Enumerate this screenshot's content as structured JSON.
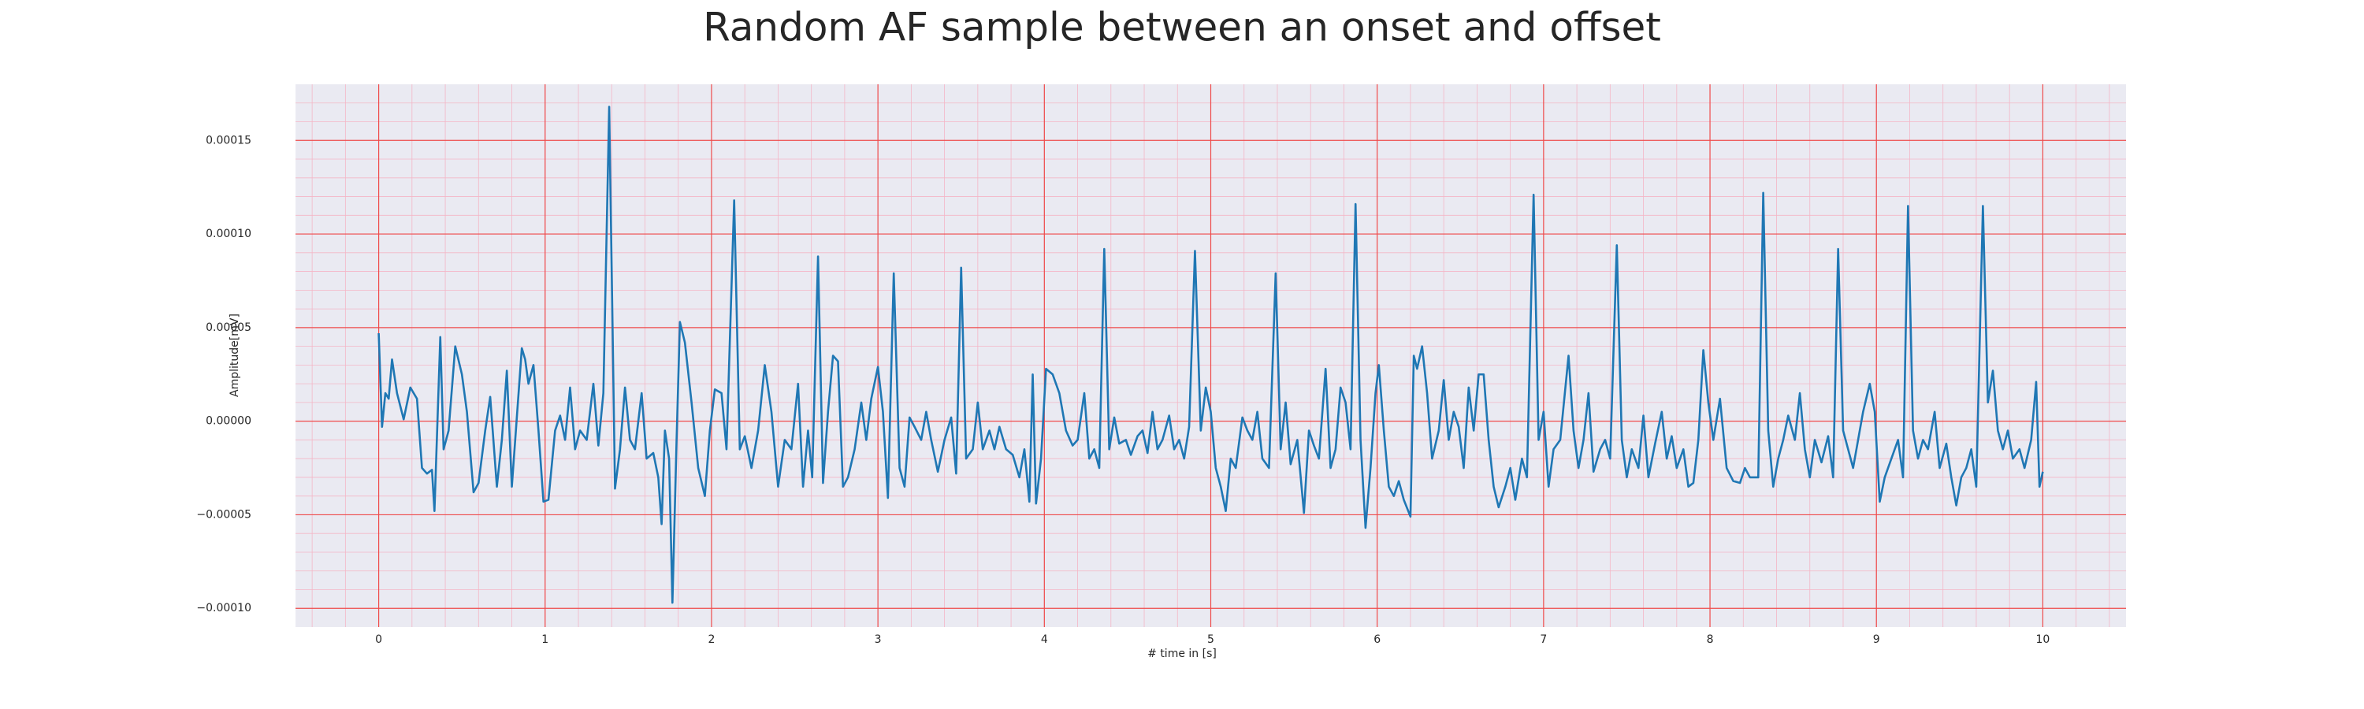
{
  "chart_data": {
    "type": "line",
    "title": "Random AF sample between an onset and offset",
    "xlabel": "# time in [s]",
    "ylabel": "Amplitude[mV]",
    "color": "#1f77b4",
    "xlim": [
      -0.5,
      10.5
    ],
    "ylim": [
      -0.00011,
      0.00018
    ],
    "xticks": [
      0,
      1,
      2,
      3,
      4,
      5,
      6,
      7,
      8,
      9,
      10
    ],
    "yticks": [
      {
        "value": -0.0001,
        "label": "−0.00010"
      },
      {
        "value": -5e-05,
        "label": "−0.00005"
      },
      {
        "value": 0,
        "label": "0.00000"
      },
      {
        "value": 5e-05,
        "label": "0.00005"
      },
      {
        "value": 0.0001,
        "label": "0.00010"
      },
      {
        "value": 0.00015,
        "label": "0.00015"
      }
    ],
    "grid": true,
    "minor_divisions": 5,
    "x": [
      0,
      0.02,
      0.04,
      0.06,
      0.08,
      0.11,
      0.15,
      0.19,
      0.23,
      0.26,
      0.29,
      0.32,
      0.335,
      0.37,
      0.39,
      0.42,
      0.46,
      0.5,
      0.53,
      0.57,
      0.6,
      0.64,
      0.67,
      0.71,
      0.74,
      0.77,
      0.8,
      0.83,
      0.86,
      0.88,
      0.9,
      0.93,
      0.96,
      0.99,
      1.02,
      1.06,
      1.09,
      1.12,
      1.15,
      1.18,
      1.21,
      1.25,
      1.29,
      1.32,
      1.35,
      1.385,
      1.42,
      1.45,
      1.48,
      1.51,
      1.54,
      1.58,
      1.61,
      1.65,
      1.68,
      1.7,
      1.72,
      1.745,
      1.765,
      1.79,
      1.81,
      1.84,
      1.88,
      1.92,
      1.96,
      1.99,
      2.02,
      2.06,
      2.09,
      2.136,
      2.17,
      2.2,
      2.24,
      2.28,
      2.32,
      2.36,
      2.4,
      2.44,
      2.48,
      2.52,
      2.55,
      2.58,
      2.605,
      2.64,
      2.67,
      2.7,
      2.73,
      2.76,
      2.79,
      2.82,
      2.86,
      2.9,
      2.93,
      2.96,
      3,
      3.03,
      3.06,
      3.095,
      3.13,
      3.16,
      3.19,
      3.22,
      3.26,
      3.29,
      3.32,
      3.36,
      3.4,
      3.44,
      3.47,
      3.5,
      3.53,
      3.57,
      3.6,
      3.63,
      3.67,
      3.7,
      3.73,
      3.77,
      3.81,
      3.85,
      3.88,
      3.91,
      3.93,
      3.95,
      3.98,
      4.01,
      4.05,
      4.09,
      4.13,
      4.17,
      4.2,
      4.24,
      4.27,
      4.3,
      4.33,
      4.36,
      4.39,
      4.42,
      4.45,
      4.49,
      4.52,
      4.56,
      4.59,
      4.62,
      4.65,
      4.68,
      4.71,
      4.75,
      4.78,
      4.81,
      4.84,
      4.87,
      4.905,
      4.94,
      4.97,
      5,
      5.03,
      5.06,
      5.09,
      5.12,
      5.15,
      5.19,
      5.22,
      5.25,
      5.28,
      5.31,
      5.35,
      5.39,
      5.42,
      5.45,
      5.48,
      5.52,
      5.56,
      5.59,
      5.62,
      5.65,
      5.69,
      5.72,
      5.75,
      5.78,
      5.81,
      5.84,
      5.87,
      5.9,
      5.93,
      5.96,
      5.99,
      6.01,
      6.04,
      6.07,
      6.1,
      6.13,
      6.16,
      6.2,
      6.22,
      6.24,
      6.27,
      6.3,
      6.33,
      6.37,
      6.4,
      6.43,
      6.46,
      6.49,
      6.52,
      6.55,
      6.58,
      6.61,
      6.64,
      6.67,
      6.7,
      6.73,
      6.77,
      6.8,
      6.83,
      6.87,
      6.9,
      6.94,
      6.97,
      7,
      7.03,
      7.06,
      7.1,
      7.15,
      7.18,
      7.21,
      7.24,
      7.27,
      7.3,
      7.34,
      7.37,
      7.4,
      7.44,
      7.47,
      7.5,
      7.53,
      7.57,
      7.6,
      7.63,
      7.67,
      7.71,
      7.74,
      7.77,
      7.8,
      7.84,
      7.87,
      7.9,
      7.93,
      7.96,
      7.99,
      8.02,
      8.06,
      8.1,
      8.14,
      8.18,
      8.21,
      8.24,
      8.29,
      8.32,
      8.35,
      8.38,
      8.41,
      8.44,
      8.47,
      8.51,
      8.54,
      8.57,
      8.6,
      8.63,
      8.67,
      8.71,
      8.74,
      8.77,
      8.8,
      8.83,
      8.86,
      8.89,
      8.92,
      8.96,
      8.99,
      9.02,
      9.05,
      9.09,
      9.13,
      9.16,
      9.19,
      9.22,
      9.25,
      9.28,
      9.31,
      9.35,
      9.38,
      9.42,
      9.45,
      9.48,
      9.51,
      9.54,
      9.57,
      9.6,
      9.64,
      9.67,
      9.7,
      9.73,
      9.76,
      9.79,
      9.82,
      9.86,
      9.89,
      9.93,
      9.96,
      9.98,
      10
    ],
    "values": [
      4.7e-05,
      -3e-06,
      1.5e-05,
      1.2e-05,
      3.3e-05,
      1.5e-05,
      1e-06,
      1.8e-05,
      1.2e-05,
      -2.5e-05,
      -2.8e-05,
      -2.6e-05,
      -4.8e-05,
      4.5e-05,
      -1.5e-05,
      -5e-06,
      4e-05,
      2.5e-05,
      5e-06,
      -3.8e-05,
      -3.3e-05,
      -5e-06,
      1.3e-05,
      -3.5e-05,
      -1e-05,
      2.7e-05,
      -3.5e-05,
      2e-06,
      3.9e-05,
      3.3e-05,
      2e-05,
      3e-05,
      -5e-06,
      -4.3e-05,
      -4.2e-05,
      -5e-06,
      3e-06,
      -1e-05,
      1.8e-05,
      -1.5e-05,
      -5e-06,
      -1e-05,
      2e-05,
      -1.3e-05,
      1.5e-05,
      0.000168,
      -3.6e-05,
      -1.5e-05,
      1.8e-05,
      -1e-05,
      -1.5e-05,
      1.5e-05,
      -2e-05,
      -1.7e-05,
      -3e-05,
      -5.5e-05,
      -5e-06,
      -2e-05,
      -9.7e-05,
      -1e-05,
      5.3e-05,
      4.2e-05,
      1e-05,
      -2.5e-05,
      -4e-05,
      -5e-06,
      1.7e-05,
      1.5e-05,
      -1.5e-05,
      0.000118,
      -1.5e-05,
      -8e-06,
      -2.5e-05,
      -5e-06,
      3e-05,
      5e-06,
      -3.5e-05,
      -1e-05,
      -1.5e-05,
      2e-05,
      -3.5e-05,
      -5e-06,
      -3e-05,
      8.8e-05,
      -3.3e-05,
      5e-06,
      3.5e-05,
      3.2e-05,
      -3.5e-05,
      -3e-05,
      -1.5e-05,
      1e-05,
      -1e-05,
      1.2e-05,
      2.9e-05,
      5e-06,
      -4.1e-05,
      7.9e-05,
      -2.5e-05,
      -3.5e-05,
      2e-06,
      -3e-06,
      -1e-05,
      5e-06,
      -1e-05,
      -2.7e-05,
      -1e-05,
      2e-06,
      -2.8e-05,
      8.2e-05,
      -2e-05,
      -1.5e-05,
      1e-05,
      -1.5e-05,
      -5e-06,
      -1.5e-05,
      -3e-06,
      -1.5e-05,
      -1.8e-05,
      -3e-05,
      -1.5e-05,
      -4.3e-05,
      2.5e-05,
      -4.4e-05,
      -2e-05,
      2.8e-05,
      2.5e-05,
      1.5e-05,
      -5e-06,
      -1.3e-05,
      -1e-05,
      1.5e-05,
      -2e-05,
      -1.5e-05,
      -2.5e-05,
      9.2e-05,
      -1.5e-05,
      2e-06,
      -1.2e-05,
      -1e-05,
      -1.8e-05,
      -8e-06,
      -5e-06,
      -1.7e-05,
      5e-06,
      -1.5e-05,
      -1e-05,
      3e-06,
      -1.5e-05,
      -1e-05,
      -2e-05,
      -3e-06,
      9.1e-05,
      -5e-06,
      1.8e-05,
      5e-06,
      -2.5e-05,
      -3.5e-05,
      -4.8e-05,
      -2e-05,
      -2.5e-05,
      2e-06,
      -5e-06,
      -1e-05,
      5e-06,
      -2e-05,
      -2.5e-05,
      7.9e-05,
      -1.5e-05,
      1e-05,
      -2.3e-05,
      -1e-05,
      -4.9e-05,
      -5e-06,
      -1.3e-05,
      -2e-05,
      2.8e-05,
      -2.5e-05,
      -1.5e-05,
      1.8e-05,
      1e-05,
      -1.5e-05,
      0.000116,
      -1e-05,
      -5.7e-05,
      -2.5e-05,
      1.5e-05,
      3e-05,
      -5e-06,
      -3.5e-05,
      -4e-05,
      -3.2e-05,
      -4.2e-05,
      -5.1e-05,
      3.5e-05,
      2.8e-05,
      4e-05,
      1.5e-05,
      -2e-05,
      -5e-06,
      2.2e-05,
      -1e-05,
      5e-06,
      -3e-06,
      -2.5e-05,
      1.8e-05,
      -5e-06,
      2.5e-05,
      2.5e-05,
      -1e-05,
      -3.5e-05,
      -4.6e-05,
      -3.5e-05,
      -2.5e-05,
      -4.2e-05,
      -2e-05,
      -3e-05,
      0.000121,
      -1e-05,
      5e-06,
      -3.5e-05,
      -1.5e-05,
      -1e-05,
      3.5e-05,
      -5e-06,
      -2.5e-05,
      -1e-05,
      1.5e-05,
      -2.7e-05,
      -1.5e-05,
      -1e-05,
      -2e-05,
      9.4e-05,
      -1e-05,
      -3e-05,
      -1.5e-05,
      -2.5e-05,
      3e-06,
      -3e-05,
      -1.2e-05,
      5e-06,
      -2e-05,
      -8e-06,
      -2.5e-05,
      -1.5e-05,
      -3.5e-05,
      -3.3e-05,
      -1e-05,
      3.8e-05,
      1e-05,
      -1e-05,
      1.2e-05,
      -2.5e-05,
      -3.2e-05,
      -3.3e-05,
      -2.5e-05,
      -3e-05,
      -3e-05,
      0.000122,
      -5e-06,
      -3.5e-05,
      -2e-05,
      -1e-05,
      3e-06,
      -1e-05,
      1.5e-05,
      -1.5e-05,
      -3e-05,
      -1e-05,
      -2.2e-05,
      -8e-06,
      -3e-05,
      9.2e-05,
      -5e-06,
      -1.5e-05,
      -2.5e-05,
      -1e-05,
      5e-06,
      2e-05,
      5e-06,
      -4.3e-05,
      -3e-05,
      -2e-05,
      -1e-05,
      -3e-05,
      0.000115,
      -5e-06,
      -2e-05,
      -1e-05,
      -1.5e-05,
      5e-06,
      -2.5e-05,
      -1.2e-05,
      -3e-05,
      -4.5e-05,
      -3e-05,
      -2.5e-05,
      -1.5e-05,
      -3.5e-05,
      0.000115,
      1e-05,
      2.7e-05,
      -5e-06,
      -1.5e-05,
      -5e-06,
      -2e-05,
      -1.5e-05,
      -2.5e-05,
      -1e-05,
      2.1e-05,
      -3.5e-05,
      -2.7e-05
    ]
  }
}
